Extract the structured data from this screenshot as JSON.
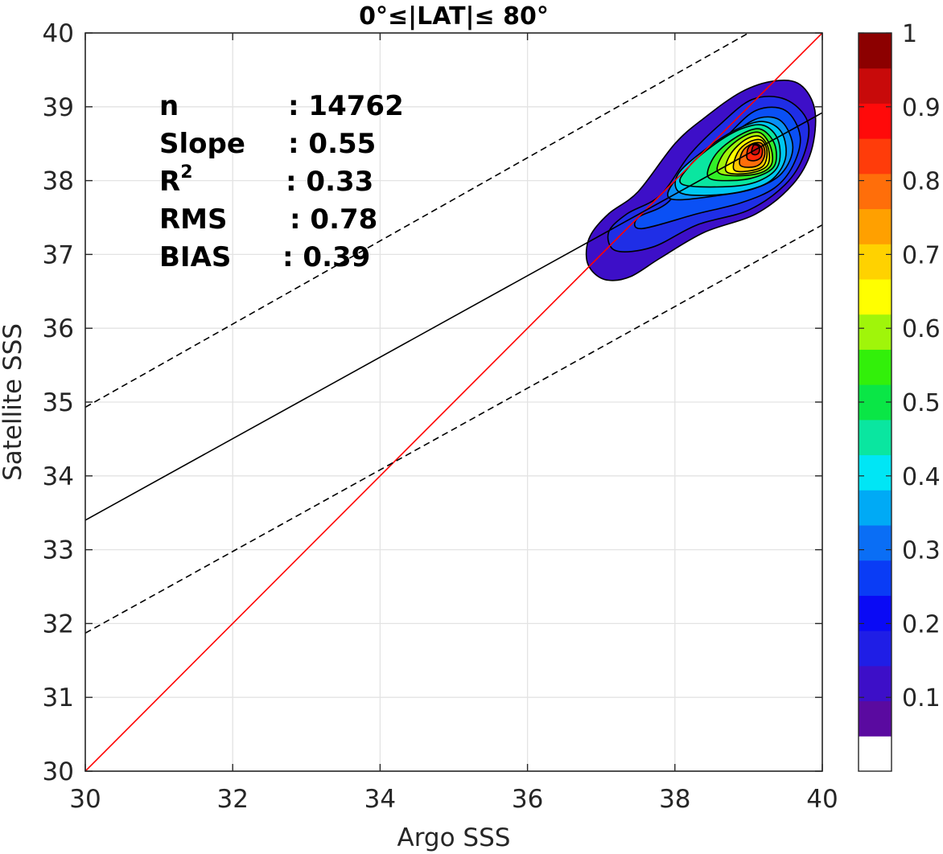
{
  "chart_data": {
    "type": "heatmap",
    "title": "0°≤|LAT|≤ 80°",
    "xlabel": "Argo SSS",
    "ylabel": "Satellite SSS",
    "xlim": [
      30,
      40
    ],
    "ylim": [
      30,
      40
    ],
    "x_ticks": [
      "30",
      "32",
      "34",
      "36",
      "38",
      "40"
    ],
    "y_ticks": [
      "30",
      "31",
      "32",
      "33",
      "34",
      "35",
      "36",
      "37",
      "38",
      "39",
      "40"
    ],
    "grid": true,
    "stats": [
      {
        "label": "n",
        "value": ": 14762"
      },
      {
        "label": "Slope",
        "value": ": 0.55"
      },
      {
        "label": "R",
        "sup": "2",
        "value": ": 0.33"
      },
      {
        "label": "RMS",
        "value": ": 0.78"
      },
      {
        "label": "BIAS",
        "value": ": 0.39"
      }
    ],
    "lines": [
      {
        "kind": "one-to-one",
        "color": "#ff0000",
        "x": [
          30,
          40
        ],
        "y": [
          30,
          40
        ]
      },
      {
        "kind": "regression",
        "color": "#000000",
        "x": [
          30,
          40
        ],
        "y": [
          33.4,
          38.92
        ]
      },
      {
        "kind": "upper-bound",
        "color": "#000000",
        "dash": true,
        "x": [
          30,
          39.0
        ],
        "y": [
          34.93,
          40.0
        ]
      },
      {
        "kind": "lower-bound",
        "color": "#000000",
        "dash": true,
        "x": [
          30,
          40
        ],
        "y": [
          31.87,
          37.4
        ]
      }
    ],
    "density": {
      "center": [
        39.1,
        38.5
      ],
      "description_levels": [
        0.05,
        0.1,
        0.2,
        0.3,
        0.4,
        0.5,
        0.6,
        0.7,
        0.8,
        0.9
      ],
      "contours": [
        {
          "level": 0.05,
          "color": "#3d0fc8",
          "points": [
            [
              37.1,
              36.65
            ],
            [
              36.9,
              36.75
            ],
            [
              36.8,
              36.95
            ],
            [
              36.85,
              37.25
            ],
            [
              37.1,
              37.55
            ],
            [
              37.5,
              37.85
            ],
            [
              38.0,
              38.5
            ],
            [
              38.4,
              38.85
            ],
            [
              38.9,
              39.2
            ],
            [
              39.35,
              39.35
            ],
            [
              39.7,
              39.3
            ],
            [
              39.9,
              38.95
            ],
            [
              39.85,
              38.4
            ],
            [
              39.6,
              37.95
            ],
            [
              39.1,
              37.55
            ],
            [
              38.4,
              37.3
            ],
            [
              37.8,
              36.95
            ],
            [
              37.4,
              36.7
            ]
          ]
        },
        {
          "level": 0.1,
          "color": "#1f2ee6",
          "points": [
            [
              37.2,
              37.05
            ],
            [
              37.1,
              37.3
            ],
            [
              37.35,
              37.55
            ],
            [
              37.8,
              37.8
            ],
            [
              38.2,
              38.35
            ],
            [
              38.6,
              38.75
            ],
            [
              39.05,
              39.1
            ],
            [
              39.5,
              39.1
            ],
            [
              39.8,
              38.8
            ],
            [
              39.75,
              38.35
            ],
            [
              39.5,
              37.95
            ],
            [
              39.0,
              37.6
            ],
            [
              38.3,
              37.4
            ],
            [
              37.7,
              37.1
            ]
          ]
        },
        {
          "level": 0.2,
          "color": "#0a50f5",
          "points": [
            [
              37.55,
              37.35
            ],
            [
              37.5,
              37.5
            ],
            [
              37.9,
              37.7
            ],
            [
              38.3,
              38.2
            ],
            [
              38.7,
              38.6
            ],
            [
              39.1,
              38.95
            ],
            [
              39.5,
              38.95
            ],
            [
              39.7,
              38.6
            ],
            [
              39.6,
              38.2
            ],
            [
              39.35,
              37.9
            ],
            [
              38.9,
              37.7
            ],
            [
              38.3,
              37.55
            ]
          ]
        },
        {
          "level": 0.3,
          "color": "#0a90f5",
          "points": [
            [
              37.95,
              37.75
            ],
            [
              38.0,
              38.0
            ],
            [
              38.4,
              38.35
            ],
            [
              38.8,
              38.65
            ],
            [
              39.15,
              38.85
            ],
            [
              39.45,
              38.8
            ],
            [
              39.6,
              38.45
            ],
            [
              39.45,
              38.1
            ],
            [
              39.1,
              37.9
            ],
            [
              38.6,
              37.8
            ]
          ]
        },
        {
          "level": 0.4,
          "color": "#00c8f0",
          "points": [
            [
              38.05,
              37.85
            ],
            [
              38.05,
              38.1
            ],
            [
              38.45,
              38.45
            ],
            [
              38.85,
              38.7
            ],
            [
              39.2,
              38.8
            ],
            [
              39.45,
              38.65
            ],
            [
              39.5,
              38.3
            ],
            [
              39.3,
              38.0
            ],
            [
              38.9,
              37.85
            ],
            [
              38.4,
              37.8
            ]
          ]
        },
        {
          "level": 0.5,
          "color": "#0ae6a0",
          "points": [
            [
              38.1,
              37.95
            ],
            [
              38.2,
              38.2
            ],
            [
              38.55,
              38.5
            ],
            [
              38.9,
              38.7
            ],
            [
              39.2,
              38.75
            ],
            [
              39.4,
              38.55
            ],
            [
              39.4,
              38.2
            ],
            [
              39.15,
              38.0
            ],
            [
              38.75,
              37.92
            ]
          ]
        },
        {
          "level": 0.6,
          "color": "#32f028",
          "points": [
            [
              38.45,
              38.05
            ],
            [
              38.55,
              38.35
            ],
            [
              38.85,
              38.6
            ],
            [
              39.15,
              38.7
            ],
            [
              39.35,
              38.5
            ],
            [
              39.35,
              38.2
            ],
            [
              39.1,
              38.05
            ],
            [
              38.75,
              38.0
            ]
          ]
        },
        {
          "level": 0.7,
          "color": "#a0f50a",
          "points": [
            [
              38.6,
              38.1
            ],
            [
              38.65,
              38.35
            ],
            [
              38.9,
              38.58
            ],
            [
              39.15,
              38.65
            ],
            [
              39.3,
              38.45
            ],
            [
              39.3,
              38.2
            ],
            [
              39.05,
              38.08
            ]
          ]
        },
        {
          "level": 0.8,
          "color": "#ffff00",
          "points": [
            [
              38.7,
              38.12
            ],
            [
              38.75,
              38.35
            ],
            [
              38.95,
              38.55
            ],
            [
              39.15,
              38.6
            ],
            [
              39.27,
              38.43
            ],
            [
              39.25,
              38.2
            ],
            [
              39.0,
              38.1
            ]
          ]
        },
        {
          "level": 0.9,
          "color": "#ffc800",
          "points": [
            [
              38.8,
              38.15
            ],
            [
              38.85,
              38.38
            ],
            [
              39.0,
              38.52
            ],
            [
              39.17,
              38.55
            ],
            [
              39.25,
              38.4
            ],
            [
              39.2,
              38.2
            ],
            [
              39.0,
              38.13
            ]
          ]
        },
        {
          "level": 1.0,
          "color": "#ff6e0a",
          "points": [
            [
              38.88,
              38.22
            ],
            [
              38.92,
              38.4
            ],
            [
              39.05,
              38.5
            ],
            [
              39.18,
              38.5
            ],
            [
              39.22,
              38.36
            ],
            [
              39.15,
              38.22
            ],
            [
              39.0,
              38.18
            ]
          ]
        },
        {
          "level": 1.1,
          "color": "#ff280a",
          "points": [
            [
              38.98,
              38.3
            ],
            [
              39.0,
              38.45
            ],
            [
              39.1,
              38.5
            ],
            [
              39.18,
              38.44
            ],
            [
              39.17,
              38.32
            ],
            [
              39.08,
              38.27
            ]
          ]
        },
        {
          "level": 1.2,
          "color": "#c80a0a",
          "points": [
            [
              39.04,
              38.38
            ],
            [
              39.07,
              38.48
            ],
            [
              39.14,
              38.46
            ],
            [
              39.14,
              38.38
            ],
            [
              39.09,
              38.35
            ]
          ]
        }
      ]
    },
    "colorbar": {
      "ticks": [
        "1",
        "0.9",
        "0.8",
        "0.7",
        "0.6",
        "0.5",
        "0.4",
        "0.3",
        "0.2",
        "0.1"
      ],
      "range": [
        0,
        1
      ],
      "colors": [
        "#ffffff",
        "#5a0aa0",
        "#3d0fc8",
        "#1f1ee6",
        "#0a0af5",
        "#0a3cf5",
        "#0a6ef5",
        "#00aaf5",
        "#00e6f5",
        "#0ae6a0",
        "#0ae646",
        "#32f00a",
        "#a0f50a",
        "#ffff00",
        "#ffd200",
        "#ffa000",
        "#ff6e0a",
        "#ff3c0a",
        "#ff0a0a",
        "#c80a0a",
        "#8c0000"
      ]
    }
  }
}
